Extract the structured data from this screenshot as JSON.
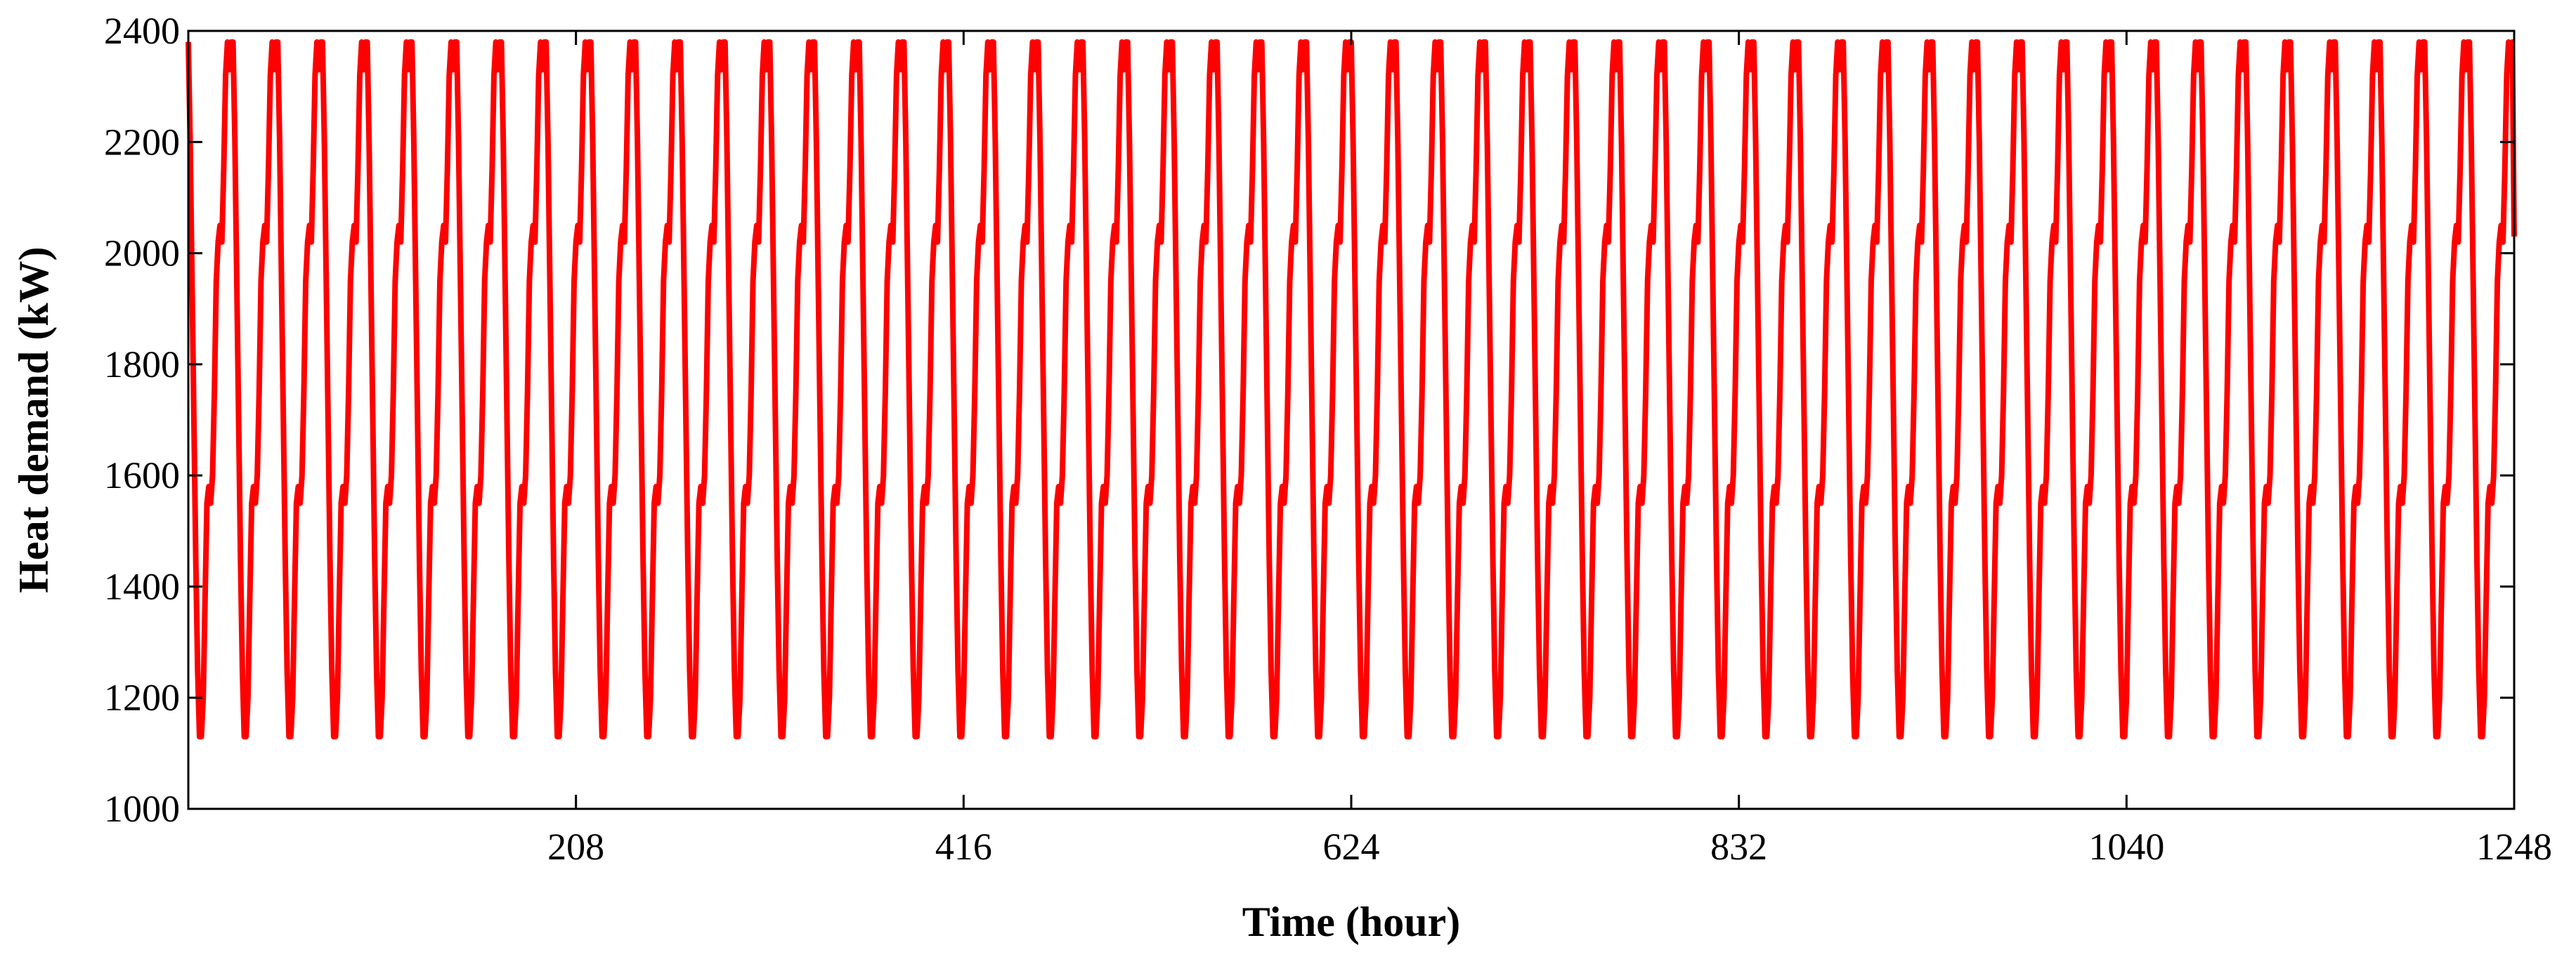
{
  "chart_data": {
    "type": "line",
    "title": "",
    "xlabel": "Time (hour)",
    "ylabel": "Heat demand (kW)",
    "xlim": [
      0,
      1248
    ],
    "ylim": [
      1000,
      2400
    ],
    "xticks": [
      208,
      416,
      624,
      832,
      1040,
      1248
    ],
    "yticks": [
      1000,
      1200,
      1400,
      1600,
      1800,
      2000,
      2200,
      2400
    ],
    "grid": false,
    "legend": "none",
    "series": [
      {
        "color": "#ff0000",
        "period_hours": 24,
        "daily_profile": [
          2380,
          2200,
          1950,
          1700,
          1450,
          1250,
          1130,
          1130,
          1200,
          1380,
          1550,
          1580,
          1550,
          1600,
          1750,
          1950,
          2020,
          2050,
          2020,
          2150,
          2320,
          2380,
          2330,
          2380
        ],
        "start_hour": 0,
        "end_hour": 1248,
        "end_value": 2030
      }
    ]
  }
}
